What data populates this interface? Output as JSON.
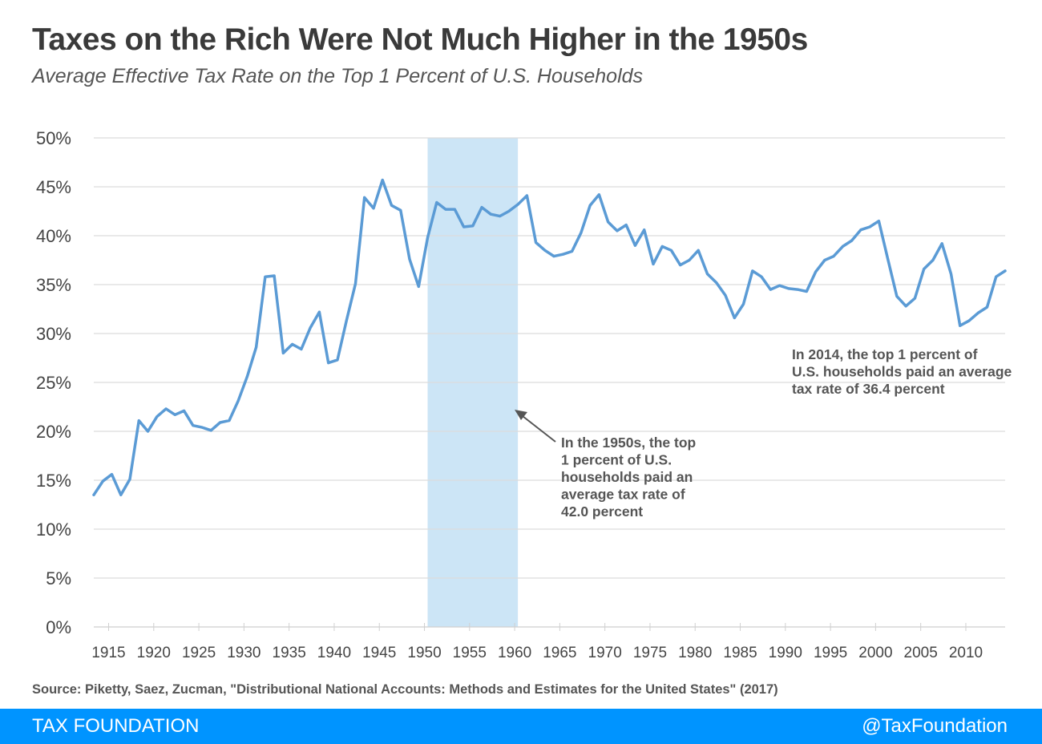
{
  "header": {
    "title": "Taxes on the Rich Were Not Much Higher in the 1950s",
    "subtitle": "Average  Effective Tax Rate on the Top 1 Percent of U.S. Households"
  },
  "chart_data": {
    "type": "line",
    "title": "Taxes on the Rich Were Not Much Higher in the 1950s",
    "subtitle": "Average  Effective Tax Rate on the Top 1 Percent of U.S. Households",
    "xlabel": "",
    "ylabel": "",
    "ylim": [
      0,
      50
    ],
    "xlim": [
      1913,
      2014
    ],
    "grid": true,
    "legend": "none",
    "line_color": "#5b9bd5",
    "highlight_band": {
      "from": 1950,
      "to": 1960,
      "color": "#cce5f6"
    },
    "y_ticks": [
      "0%",
      "5%",
      "10%",
      "15%",
      "20%",
      "25%",
      "30%",
      "35%",
      "40%",
      "45%",
      "50%"
    ],
    "x_ticks": [
      "1915",
      "1920",
      "1925",
      "1930",
      "1935",
      "1940",
      "1945",
      "1950",
      "1955",
      "1960",
      "1965",
      "1970",
      "1975",
      "1980",
      "1985",
      "1990",
      "1995",
      "2000",
      "2005",
      "2010"
    ],
    "x": [
      1913,
      1914,
      1915,
      1916,
      1917,
      1918,
      1919,
      1920,
      1921,
      1922,
      1923,
      1924,
      1925,
      1926,
      1927,
      1928,
      1929,
      1930,
      1931,
      1932,
      1933,
      1934,
      1935,
      1936,
      1937,
      1938,
      1939,
      1940,
      1941,
      1942,
      1943,
      1944,
      1945,
      1946,
      1947,
      1948,
      1949,
      1950,
      1951,
      1952,
      1953,
      1954,
      1955,
      1956,
      1957,
      1958,
      1959,
      1960,
      1961,
      1962,
      1963,
      1964,
      1965,
      1966,
      1967,
      1968,
      1969,
      1970,
      1971,
      1972,
      1973,
      1974,
      1975,
      1976,
      1977,
      1978,
      1979,
      1980,
      1981,
      1982,
      1983,
      1984,
      1985,
      1986,
      1987,
      1988,
      1989,
      1990,
      1991,
      1992,
      1993,
      1994,
      1995,
      1996,
      1997,
      1998,
      1999,
      2000,
      2001,
      2002,
      2003,
      2004,
      2005,
      2006,
      2007,
      2008,
      2009,
      2010,
      2011,
      2012,
      2013,
      2014
    ],
    "values": [
      13.5,
      14.9,
      15.6,
      13.5,
      15.1,
      21.1,
      20.0,
      21.5,
      22.3,
      21.7,
      22.1,
      20.6,
      20.4,
      20.1,
      20.9,
      21.1,
      23.1,
      25.6,
      28.6,
      35.8,
      35.9,
      28.0,
      28.9,
      28.4,
      30.6,
      32.2,
      27.0,
      27.3,
      31.3,
      35.1,
      43.9,
      42.8,
      45.7,
      43.1,
      42.6,
      37.6,
      34.8,
      39.8,
      43.4,
      42.7,
      42.7,
      40.9,
      41.0,
      42.9,
      42.2,
      42.0,
      42.5,
      43.2,
      44.1,
      39.3,
      38.5,
      37.9,
      38.1,
      38.4,
      40.3,
      43.1,
      44.2,
      41.4,
      40.5,
      41.1,
      39.0,
      40.6,
      37.1,
      38.9,
      38.5,
      37.0,
      37.5,
      38.5,
      36.1,
      35.2,
      33.9,
      31.6,
      33.0,
      36.4,
      35.8,
      34.5,
      34.9,
      34.6,
      34.5,
      34.3,
      36.3,
      37.5,
      37.9,
      38.9,
      39.5,
      40.6,
      40.9,
      41.5,
      37.6,
      33.8,
      32.8,
      33.6,
      36.6,
      37.5,
      39.2,
      36.1,
      30.8,
      31.3,
      32.1,
      32.7,
      35.8,
      36.4
    ],
    "annotations": [
      {
        "lines": [
          "In the 1950s, the top",
          "1 percent of U.S.",
          "households paid an",
          "average tax rate of",
          "42.0 percent"
        ],
        "arrow": true
      },
      {
        "lines": [
          "In 2014, the top 1 percent of",
          "U.S. households paid an average",
          "tax rate of 36.4 percent"
        ],
        "arrow": false
      }
    ]
  },
  "source": "Source: Piketty, Saez, Zucman, \"Distributional National Accounts: Methods and Estimates for the United States\" (2017)",
  "footer": {
    "brand": "TAX FOUNDATION",
    "handle": "@TaxFoundation",
    "color": "#0094ff"
  }
}
